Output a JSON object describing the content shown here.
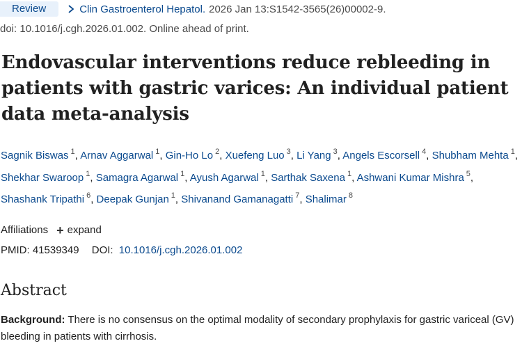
{
  "article": {
    "publication_type": "Review",
    "journal": "Clin Gastroenterol Hepatol.",
    "citation_date": "2026 Jan 13:S1542-3565(26)00002-9.",
    "doi_line": "doi: 10.1016/j.cgh.2026.01.002. Online ahead of print.",
    "title": "Endovascular interventions reduce rebleeding in patients with gastric varices: An individual patient data meta-analysis",
    "authors": [
      {
        "name": "Sagnik Biswas",
        "affil": "1"
      },
      {
        "name": "Arnav Aggarwal",
        "affil": "1"
      },
      {
        "name": "Gin-Ho Lo",
        "affil": "2"
      },
      {
        "name": "Xuefeng Luo",
        "affil": "3"
      },
      {
        "name": "Li Yang",
        "affil": "3"
      },
      {
        "name": "Angels Escorsell",
        "affil": "4"
      },
      {
        "name": "Shubham Mehta",
        "affil": "1"
      },
      {
        "name": "Shekhar Swaroop",
        "affil": "1"
      },
      {
        "name": "Samagra Agarwal",
        "affil": "1"
      },
      {
        "name": "Ayush Agarwal",
        "affil": "1"
      },
      {
        "name": "Sarthak Saxena",
        "affil": "1"
      },
      {
        "name": "Ashwani Kumar Mishra",
        "affil": "5"
      },
      {
        "name": "Shashank Tripathi",
        "affil": "6"
      },
      {
        "name": "Deepak Gunjan",
        "affil": "1"
      },
      {
        "name": "Shivanand Gamanagatti",
        "affil": "7"
      },
      {
        "name": "Shalimar",
        "affil": "8"
      }
    ],
    "affiliations_label": "Affiliations",
    "expand_label": "expand",
    "pmid_label": "PMID:",
    "pmid_value": "41539349",
    "doi_label": "DOI:",
    "doi_value": "10.1016/j.cgh.2026.01.002"
  },
  "abstract": {
    "heading": "Abstract",
    "background_label": "Background:",
    "background_text": " There is no consensus on the optimal modality of secondary prophylaxis for gastric variceal (GV) bleeding in patients with cirrhosis."
  },
  "colors": {
    "link": "#0b4a8e",
    "badge_bg": "#e8f1fb",
    "text": "#212121",
    "muted": "#4a4a4a"
  },
  "icons": {
    "journal_chevron": "chevron-right-icon",
    "expand": "plus-icon"
  }
}
